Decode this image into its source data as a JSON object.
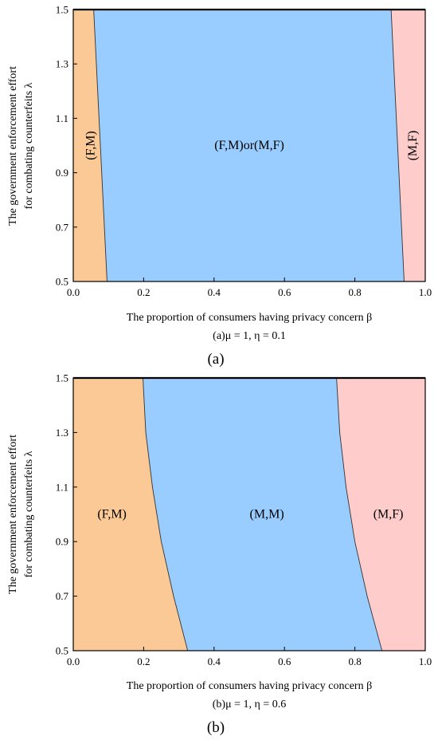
{
  "colors": {
    "fm": "#fac995",
    "mid": "#99ccff",
    "mf": "#ffcccc",
    "boundary": "#333333"
  },
  "chart_data": [
    {
      "type": "area",
      "panel_label": "(a)",
      "subcaption": "(a)μ = 1, η = 0.1",
      "xlabel": "The proportion of consumers having privacy concern β",
      "ylabel_line1": "The government enforcement effort",
      "ylabel_line2": "for combating counterfeits λ",
      "xlim": [
        0.0,
        1.0
      ],
      "ylim": [
        0.5,
        1.5
      ],
      "x_ticks": [
        "0.0",
        "0.2",
        "0.4",
        "0.6",
        "0.8",
        "1.0"
      ],
      "y_ticks": [
        "0.5",
        "0.7",
        "0.9",
        "1.1",
        "1.3",
        "1.5"
      ],
      "regions": [
        {
          "label": "(F,M)",
          "orientation": "vertical"
        },
        {
          "label": "(F,M)or(M,F)",
          "orientation": "horizontal"
        },
        {
          "label": "(M,F)",
          "orientation": "vertical"
        }
      ],
      "boundaries": [
        {
          "points": [
            [
              0.096,
              0.5
            ],
            [
              0.058,
              1.5
            ]
          ]
        },
        {
          "points": [
            [
              0.94,
              0.5
            ],
            [
              0.903,
              1.5
            ]
          ]
        }
      ]
    },
    {
      "type": "area",
      "panel_label": "(b)",
      "subcaption": "(b)μ = 1, η = 0.6",
      "xlabel": "The proportion of consumers having privacy concern β",
      "ylabel_line1": "The government enforcement effort",
      "ylabel_line2": "for combating counterfeits λ",
      "xlim": [
        0.0,
        1.0
      ],
      "ylim": [
        0.5,
        1.5
      ],
      "x_ticks": [
        "0.0",
        "0.2",
        "0.4",
        "0.6",
        "0.8",
        "1.0"
      ],
      "y_ticks": [
        "0.5",
        "0.7",
        "0.9",
        "1.1",
        "1.3",
        "1.5"
      ],
      "regions": [
        {
          "label": "(F,M)",
          "orientation": "horizontal"
        },
        {
          "label": "(M,M)",
          "orientation": "horizontal"
        },
        {
          "label": "(M,F)",
          "orientation": "horizontal"
        }
      ],
      "boundaries": [
        {
          "points": [
            [
              0.325,
              0.5
            ],
            [
              0.285,
              0.7
            ],
            [
              0.25,
              0.9
            ],
            [
              0.225,
              1.1
            ],
            [
              0.206,
              1.3
            ],
            [
              0.198,
              1.5
            ]
          ]
        },
        {
          "points": [
            [
              0.877,
              0.5
            ],
            [
              0.835,
              0.7
            ],
            [
              0.8,
              0.9
            ],
            [
              0.775,
              1.1
            ],
            [
              0.757,
              1.3
            ],
            [
              0.748,
              1.5
            ]
          ]
        }
      ]
    }
  ]
}
